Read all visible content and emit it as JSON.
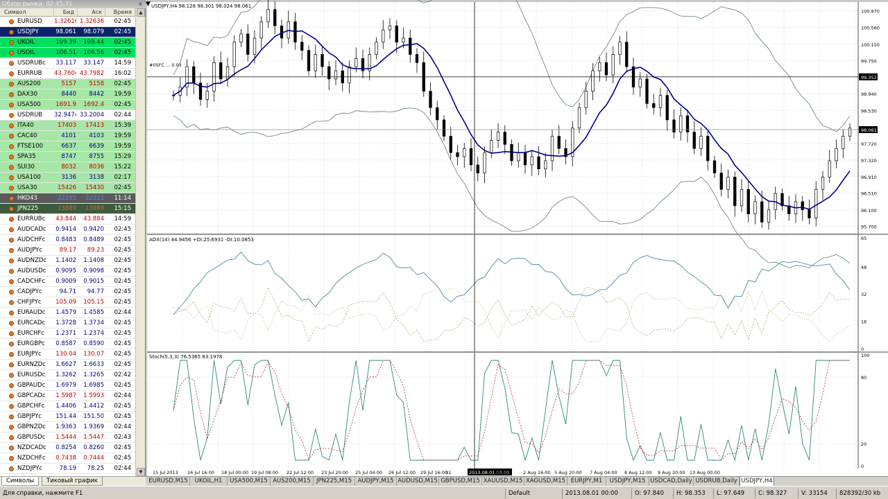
{
  "market_watch": {
    "title": "Обзор рынка: 02:45:31",
    "close_label": "x",
    "columns": [
      "Символ",
      "Бид",
      "Аск",
      "Время"
    ],
    "rows": [
      {
        "symbol": "EURUSD",
        "bid": "1.32616",
        "ask": "1.32636",
        "time": "02:45",
        "bg": "#ffffff",
        "fg": "#c00000",
        "ask_fg": "#c00000"
      },
      {
        "symbol": "USDJPY",
        "bid": "98.061",
        "ask": "98.079",
        "time": "02:45",
        "bg": "#0a246a",
        "fg": "#ffffff",
        "ask_fg": "#ffffff"
      },
      {
        "symbol": "UKOIL",
        "bid": "109.39",
        "ask": "109.44",
        "time": "02:45",
        "bg": "#00e060",
        "fg": "#003a00",
        "ask_fg": "#003a00"
      },
      {
        "symbol": "USOIL",
        "bid": "106.51",
        "ask": "106.56",
        "time": "02:45",
        "bg": "#00e060",
        "fg": "#003a00",
        "ask_fg": "#003a00"
      },
      {
        "symbol": "USDRUBc",
        "bid": "33.117",
        "ask": "33.147",
        "time": "14:59",
        "bg": "#ffffff",
        "fg": "#000080",
        "ask_fg": "#000080"
      },
      {
        "symbol": "EURRUB",
        "bid": "43.7604",
        "ask": "43.7982",
        "time": "16:02",
        "bg": "#ffffff",
        "fg": "#c00000",
        "ask_fg": "#c00000"
      },
      {
        "symbol": "AUS200",
        "bid": "5157",
        "ask": "5158",
        "time": "02:45",
        "bg": "#a6e6a6",
        "fg": "#c00000",
        "ask_fg": "#c00000"
      },
      {
        "symbol": "DAX30",
        "bid": "8440",
        "ask": "8442",
        "time": "19:59",
        "bg": "#a6e6a6",
        "fg": "#000080",
        "ask_fg": "#000080"
      },
      {
        "symbol": "USA500",
        "bid": "1691.9",
        "ask": "1692.4",
        "time": "02:45",
        "bg": "#a6e6a6",
        "fg": "#c00000",
        "ask_fg": "#c00000"
      },
      {
        "symbol": "USDRUB",
        "bid": "32.9474",
        "ask": "33.2004",
        "time": "02:44",
        "bg": "#ffffff",
        "fg": "#000080",
        "ask_fg": "#000080"
      },
      {
        "symbol": "ITA40",
        "bid": "17403",
        "ask": "17413",
        "time": "15:39",
        "bg": "#a6e6a6",
        "fg": "#c00000",
        "ask_fg": "#c00000"
      },
      {
        "symbol": "CAC40",
        "bid": "4101",
        "ask": "4103",
        "time": "19:59",
        "bg": "#a6e6a6",
        "fg": "#000080",
        "ask_fg": "#000080"
      },
      {
        "symbol": "FTSE100",
        "bid": "6637",
        "ask": "6639",
        "time": "19:59",
        "bg": "#a6e6a6",
        "fg": "#000080",
        "ask_fg": "#000080"
      },
      {
        "symbol": "SPA35",
        "bid": "8747",
        "ask": "8755",
        "time": "15:29",
        "bg": "#a6e6a6",
        "fg": "#000080",
        "ask_fg": "#000080"
      },
      {
        "symbol": "SUI30",
        "bid": "8032",
        "ask": "8036",
        "time": "15:22",
        "bg": "#a6e6a6",
        "fg": "#c00000",
        "ask_fg": "#c00000"
      },
      {
        "symbol": "USA100",
        "bid": "3136",
        "ask": "3138",
        "time": "02:17",
        "bg": "#a6e6a6",
        "fg": "#000080",
        "ask_fg": "#000080"
      },
      {
        "symbol": "USA30",
        "bid": "15426",
        "ask": "15430",
        "time": "02:45",
        "bg": "#a6e6a6",
        "fg": "#c00000",
        "ask_fg": "#c00000"
      },
      {
        "symbol": "HKO43",
        "bid": "22295",
        "ask": "22311",
        "time": "11:14",
        "bg": "#5a5a5a",
        "fg": "#6080ff",
        "ask_fg": "#6080ff"
      },
      {
        "symbol": "JPN225",
        "bid": "13889",
        "ask": "13869",
        "time": "15:15",
        "bg": "#3c5a3c",
        "fg": "#e06040",
        "ask_fg": "#e06040"
      },
      {
        "symbol": "EURRUBc",
        "bid": "43.844",
        "ask": "43.884",
        "time": "14:59",
        "bg": "#ffffff",
        "fg": "#c00000",
        "ask_fg": "#c00000"
      },
      {
        "symbol": "AUDCADc",
        "bid": "0.9414",
        "ask": "0.9420",
        "time": "02:45",
        "bg": "#ffffff",
        "fg": "#000080",
        "ask_fg": "#000080"
      },
      {
        "symbol": "AUDCHFc",
        "bid": "0.8483",
        "ask": "0.8489",
        "time": "02:45",
        "bg": "#ffffff",
        "fg": "#000080",
        "ask_fg": "#000080"
      },
      {
        "symbol": "AUDJPYc",
        "bid": "89.17",
        "ask": "89.23",
        "time": "02:45",
        "bg": "#ffffff",
        "fg": "#c00000",
        "ask_fg": "#c00000"
      },
      {
        "symbol": "AUDNZDc",
        "bid": "1.1402",
        "ask": "1.1408",
        "time": "02:45",
        "bg": "#ffffff",
        "fg": "#000080",
        "ask_fg": "#000080"
      },
      {
        "symbol": "AUDUSDc",
        "bid": "0.9095",
        "ask": "0.9098",
        "time": "02:45",
        "bg": "#ffffff",
        "fg": "#000080",
        "ask_fg": "#000080"
      },
      {
        "symbol": "CADCHFc",
        "bid": "0.9009",
        "ask": "0.9015",
        "time": "02:45",
        "bg": "#ffffff",
        "fg": "#000080",
        "ask_fg": "#000080"
      },
      {
        "symbol": "CADJPYc",
        "bid": "94.71",
        "ask": "94.77",
        "time": "02:45",
        "bg": "#ffffff",
        "fg": "#000080",
        "ask_fg": "#000080"
      },
      {
        "symbol": "CHFJPYc",
        "bid": "105.09",
        "ask": "105.15",
        "time": "02:45",
        "bg": "#ffffff",
        "fg": "#c00000",
        "ask_fg": "#c00000"
      },
      {
        "symbol": "EURAUDc",
        "bid": "1.4579",
        "ask": "1.4585",
        "time": "02:44",
        "bg": "#ffffff",
        "fg": "#000080",
        "ask_fg": "#000080"
      },
      {
        "symbol": "EURCADc",
        "bid": "1.3728",
        "ask": "1.3734",
        "time": "02:45",
        "bg": "#ffffff",
        "fg": "#000080",
        "ask_fg": "#000080"
      },
      {
        "symbol": "EURCHFc",
        "bid": "1.2371",
        "ask": "1.2374",
        "time": "02:45",
        "bg": "#ffffff",
        "fg": "#000080",
        "ask_fg": "#000080"
      },
      {
        "symbol": "EURGBPc",
        "bid": "0.8587",
        "ask": "0.8590",
        "time": "02:45",
        "bg": "#ffffff",
        "fg": "#000080",
        "ask_fg": "#000080"
      },
      {
        "symbol": "EURJPYc",
        "bid": "130.04",
        "ask": "130.07",
        "time": "02:45",
        "bg": "#ffffff",
        "fg": "#c00000",
        "ask_fg": "#c00000"
      },
      {
        "symbol": "EURNZDc",
        "bid": "1.6627",
        "ask": "1.6633",
        "time": "02:45",
        "bg": "#ffffff",
        "fg": "#000080",
        "ask_fg": "#000080"
      },
      {
        "symbol": "EURUSDc",
        "bid": "1.3262",
        "ask": "1.3265",
        "time": "02:42",
        "bg": "#ffffff",
        "fg": "#000080",
        "ask_fg": "#000080"
      },
      {
        "symbol": "GBPAUDc",
        "bid": "1.6979",
        "ask": "1.6985",
        "time": "02:45",
        "bg": "#ffffff",
        "fg": "#000080",
        "ask_fg": "#000080"
      },
      {
        "symbol": "GBPCADc",
        "bid": "1.5987",
        "ask": "1.5993",
        "time": "02:44",
        "bg": "#ffffff",
        "fg": "#c00000",
        "ask_fg": "#c00000"
      },
      {
        "symbol": "GBPCHFc",
        "bid": "1.4406",
        "ask": "1.4412",
        "time": "02:45",
        "bg": "#ffffff",
        "fg": "#000080",
        "ask_fg": "#000080"
      },
      {
        "symbol": "GBPJPYc",
        "bid": "151.44",
        "ask": "151.50",
        "time": "02:45",
        "bg": "#ffffff",
        "fg": "#000080",
        "ask_fg": "#000080"
      },
      {
        "symbol": "GBPNZDc",
        "bid": "1.9363",
        "ask": "1.9369",
        "time": "02:44",
        "bg": "#ffffff",
        "fg": "#000080",
        "ask_fg": "#000080"
      },
      {
        "symbol": "GBPUSDc",
        "bid": "1.5444",
        "ask": "1.5447",
        "time": "02:43",
        "bg": "#ffffff",
        "fg": "#c00000",
        "ask_fg": "#c00000"
      },
      {
        "symbol": "NZDCADc",
        "bid": "0.8254",
        "ask": "0.8260",
        "time": "02:45",
        "bg": "#ffffff",
        "fg": "#000080",
        "ask_fg": "#000080"
      },
      {
        "symbol": "NZDCHFc",
        "bid": "0.7438",
        "ask": "0.7444",
        "time": "02:45",
        "bg": "#ffffff",
        "fg": "#c00000",
        "ask_fg": "#c00000"
      },
      {
        "symbol": "NZDJPYc",
        "bid": "78.19",
        "ask": "78.25",
        "time": "02:44",
        "bg": "#ffffff",
        "fg": "#000080",
        "ask_fg": "#000080"
      }
    ],
    "tabs": [
      "Символы",
      "Тиковый график"
    ]
  },
  "chart": {
    "main_header": "USDJPY,H4  98.128 98.301 98.024 98.061",
    "hline_label": "#05FC ... 0.03",
    "adx_header": "ADX(14) 44.9456 +DI:25.6931 -DI:10.0853",
    "stoch_header": "Stoch(5,3,3) 76.5365 83.1978",
    "price_axis": [
      "100.970",
      "100.560",
      "100.150",
      "99.750",
      "99.352",
      "98.940",
      "98.530",
      "98.061",
      "97.720",
      "97.320",
      "96.910",
      "96.510",
      "96.100",
      "95.700"
    ],
    "adx_axis": [
      "65",
      "48",
      "32",
      "16",
      "0"
    ],
    "stoch_axis": [
      "100",
      "80",
      "20",
      "0"
    ],
    "time_axis": [
      "15 Jul 2013",
      "16 Jul 16:00",
      "18 Jul 00:00",
      "19 Jul 08:00",
      "22 Jul 12:00",
      "23 Jul 20:00",
      "25 Jul 04:00",
      "26 Jul 12:00",
      "29 Jul 16:00",
      "31",
      "2013.08.01 00:00",
      "08:00",
      "2 Aug 16:00",
      "5 Aug 20:00",
      "7 Aug 04:00",
      "8 Aug 12:00",
      "9 Aug 20:00",
      "13 Aug 00:00"
    ],
    "current_price": "98.061",
    "cross_price": "99.352",
    "cross_time": "2013.08.01 00:00",
    "colors": {
      "bg": "#ffffff",
      "grid": "#c0c0c0",
      "candle": "#000000",
      "ma": "#00008b",
      "bands": "#5f7f6f",
      "adx": "#4a8aa0",
      "di_plus": "#b8a070",
      "di_minus": "#b8a070",
      "stoch_main": "#2c8a7a",
      "stoch_signal": "#c04040"
    }
  },
  "chart_tabs": [
    "EURUSD,M15",
    "UKOIL,H1",
    "USA500,M15",
    "AUS200,M15",
    "JPN225,M15",
    "AUDJPY,M15",
    "AUDUSD,M15",
    "GBPUSD,M15",
    "XAUUSD,M15",
    "XAGUSD,M15",
    "EURJPY,M1",
    "USDJPY,M15",
    "USDCAD,Daily",
    "USDRUB,Daily",
    "USDJPY,H4"
  ],
  "status": {
    "help": "Для справки, нажмите F1",
    "profile": "Default",
    "time": "2013.08.01 00:00",
    "open": "O: 97.840",
    "high": "H: 98.353",
    "low": "L: 97.649",
    "close": "C: 98.327",
    "volume": "V: 33154",
    "traffic": "828392/30 kb"
  }
}
